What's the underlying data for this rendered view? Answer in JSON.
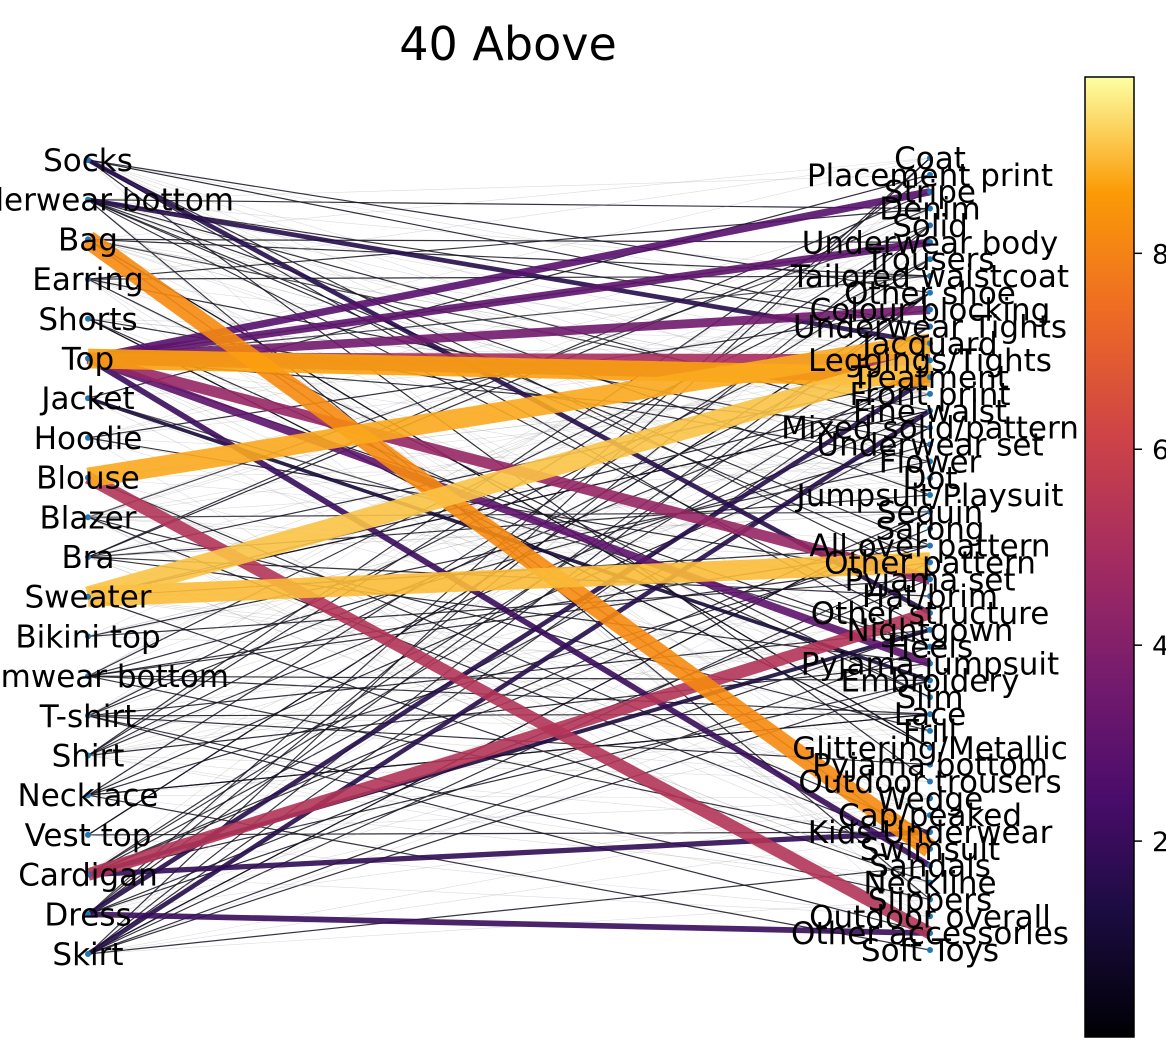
{
  "chart_data": {
    "type": "bipartite-network",
    "title": "40 Above",
    "left_nodes": [
      "Socks",
      "Underwear bottom",
      "Bag",
      "Earring",
      "Shorts",
      "Top",
      "Jacket",
      "Hoodie",
      "Blouse",
      "Blazer",
      "Bra",
      "Sweater",
      "Bikini top",
      "Swimwear bottom",
      "T-shirt",
      "Shirt",
      "Necklace",
      "Vest top",
      "Cardigan",
      "Dress",
      "Skirt"
    ],
    "right_nodes": [
      "Coat",
      "Placement print",
      "Stripe",
      "Denim",
      "Solid",
      "Underwear body",
      "Trousers",
      "Tailored waistcoat",
      "Other shoe",
      "Colour blocking",
      "Underwear Tights",
      "Jacquard",
      "Leggings/Tights",
      "Treatment",
      "Front print",
      "Fine waist",
      "Mixed solid/pattern",
      "Underwear set",
      "Flower",
      "Dot",
      "Jumpsuit/Playsuit",
      "Sequin",
      "Sarong",
      "All over pattern",
      "Other pattern",
      "Pyjama set",
      "Hat/brim",
      "Other structure",
      "Nightgown",
      "Heels",
      "Pyjama jumpsuit",
      "Embroidery",
      "Slim",
      "Lace",
      "Frill",
      "Glittering/Metallic",
      "Pyjama bottom",
      "Outdoor trousers",
      "Wedge",
      "Cap/peaked",
      "Kids Underwear",
      "Swimsuit",
      "Sandals",
      "Neckline",
      "Slippers",
      "Outdoor overall",
      "Other accessories",
      "Soft Toys"
    ],
    "edges": [
      {
        "source": "Bag",
        "target": "Swimsuit",
        "value": 8.2
      },
      {
        "source": "Blouse",
        "target": "Jacquard",
        "value": 8.8
      },
      {
        "source": "Sweater",
        "target": "Leggings/Tights",
        "value": 9.1
      },
      {
        "source": "Sweater",
        "target": "Other pattern",
        "value": 9.0
      },
      {
        "source": "Top",
        "target": "Treatment",
        "value": 8.7
      },
      {
        "source": "Blouse",
        "target": "Other accessories",
        "value": 5.3
      },
      {
        "source": "Cardigan",
        "target": "Other structure",
        "value": 5.3
      },
      {
        "source": "Top",
        "target": "Leggings/Tights",
        "value": 5.0
      },
      {
        "source": "Top",
        "target": "Treatment",
        "value": 5.0
      },
      {
        "source": "Top",
        "target": "Pyjama set",
        "value": 4.5
      },
      {
        "source": "Top",
        "target": "Colour blocking",
        "value": 3.5
      },
      {
        "source": "Top",
        "target": "Underwear body",
        "value": 3.0
      },
      {
        "source": "Top",
        "target": "Pyjama jumpsuit",
        "value": 3.0
      },
      {
        "source": "Top",
        "target": "Stripe",
        "value": 2.8
      },
      {
        "source": "Top",
        "target": "Sandals",
        "value": 2.0
      },
      {
        "source": "Socks",
        "target": "Other structure",
        "value": 1.5
      },
      {
        "source": "Underwear bottom",
        "target": "Jacquard",
        "value": 1.5
      },
      {
        "source": "Cardigan",
        "target": "Kids Underwear",
        "value": 1.8
      },
      {
        "source": "Dress",
        "target": "Treatment",
        "value": 1.5
      },
      {
        "source": "Skirt",
        "target": "Fine waist",
        "value": 1.5
      },
      {
        "source": "Dress",
        "target": "Other accessories",
        "value": 2.0
      },
      {
        "source": "Cardigan",
        "target": "Nightgown",
        "value": 1.2
      },
      {
        "source": "Jacket",
        "target": "Embroidery",
        "value": 1.0
      }
    ],
    "colorbar": {
      "colormap": "inferno",
      "ticks": [
        "2",
        "4",
        "6",
        "8"
      ],
      "range": [
        0,
        9.8
      ]
    }
  }
}
